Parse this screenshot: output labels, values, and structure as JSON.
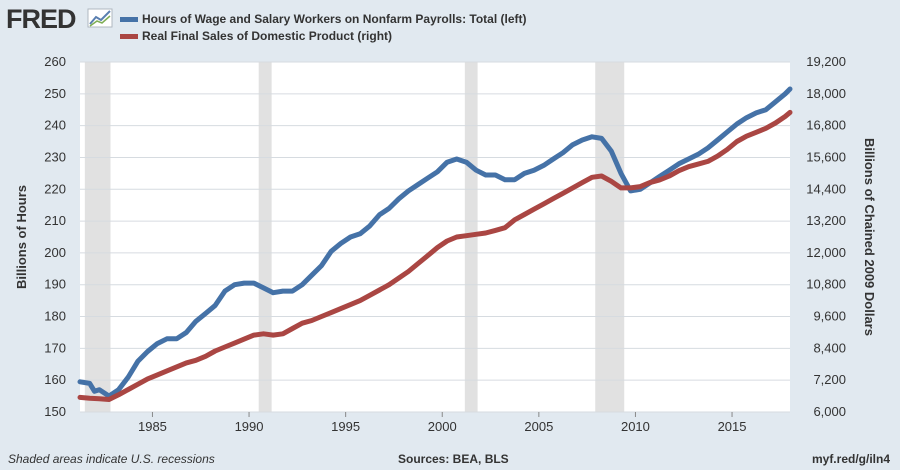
{
  "logo": {
    "text": "FRED",
    "icon": "fred-chart-icon"
  },
  "colors": {
    "series1": "#4572a7",
    "series2": "#aa4643",
    "recession": "#e1e1e1",
    "plot_bg": "#ffffff",
    "page_bg": "#e1e9f0"
  },
  "footer": {
    "note": "Shaded areas indicate U.S. recessions",
    "sources": "Sources: BEA, BLS",
    "url": "myf.red/g/iln4"
  },
  "chart_data": {
    "type": "line",
    "title": "",
    "legend_placement": "top-left",
    "left_axis": {
      "label": "Billions of Hours",
      "range": [
        150,
        260
      ],
      "ticks": [
        "150",
        "160",
        "170",
        "180",
        "190",
        "200",
        "210",
        "220",
        "230",
        "240",
        "250",
        "260"
      ]
    },
    "right_axis": {
      "label": "Billions of Chained 2009 Dollars",
      "range": [
        6000,
        19200
      ],
      "ticks": [
        "6,000",
        "7,200",
        "8,400",
        "9,600",
        "10,800",
        "12,000",
        "13,200",
        "14,400",
        "15,600",
        "16,800",
        "18,000",
        "19,200"
      ]
    },
    "x_axis": {
      "range": [
        1981.25,
        2018.0
      ],
      "ticks": [
        "1985",
        "1990",
        "1995",
        "2000",
        "2005",
        "2010",
        "2015"
      ]
    },
    "grid": "horizontal",
    "recessions": [
      [
        1981.5,
        1982.83
      ],
      [
        1990.5,
        1991.17
      ],
      [
        2001.17,
        2001.83
      ],
      [
        2007.92,
        2009.42
      ]
    ],
    "series": [
      {
        "name": "Hours of Wage and Salary Workers on Nonfarm Payrolls: Total (left)",
        "axis": "left",
        "points": [
          [
            1981.25,
            159.5
          ],
          [
            1981.75,
            159
          ],
          [
            1982.0,
            156.5
          ],
          [
            1982.25,
            157
          ],
          [
            1982.75,
            155
          ],
          [
            1983.25,
            157
          ],
          [
            1983.75,
            161
          ],
          [
            1984.25,
            166
          ],
          [
            1984.75,
            169
          ],
          [
            1985.25,
            171.5
          ],
          [
            1985.75,
            173
          ],
          [
            1986.25,
            173
          ],
          [
            1986.75,
            175
          ],
          [
            1987.25,
            178.5
          ],
          [
            1987.75,
            181
          ],
          [
            1988.25,
            183.5
          ],
          [
            1988.75,
            188
          ],
          [
            1989.25,
            190
          ],
          [
            1989.75,
            190.5
          ],
          [
            1990.25,
            190.5
          ],
          [
            1990.75,
            189
          ],
          [
            1991.25,
            187.5
          ],
          [
            1991.75,
            188
          ],
          [
            1992.25,
            188
          ],
          [
            1992.75,
            190
          ],
          [
            1993.25,
            193
          ],
          [
            1993.75,
            196
          ],
          [
            1994.25,
            200.5
          ],
          [
            1994.75,
            203
          ],
          [
            1995.25,
            205
          ],
          [
            1995.75,
            206
          ],
          [
            1996.25,
            208.5
          ],
          [
            1996.75,
            212
          ],
          [
            1997.25,
            214
          ],
          [
            1997.75,
            217
          ],
          [
            1998.25,
            219.5
          ],
          [
            1998.75,
            221.5
          ],
          [
            1999.25,
            223.5
          ],
          [
            1999.75,
            225.5
          ],
          [
            2000.25,
            228.5
          ],
          [
            2000.75,
            229.5
          ],
          [
            2001.25,
            228.5
          ],
          [
            2001.75,
            226
          ],
          [
            2002.25,
            224.5
          ],
          [
            2002.75,
            224.5
          ],
          [
            2003.25,
            223
          ],
          [
            2003.75,
            223
          ],
          [
            2004.25,
            225
          ],
          [
            2004.75,
            226
          ],
          [
            2005.25,
            227.5
          ],
          [
            2005.75,
            229.5
          ],
          [
            2006.25,
            231.5
          ],
          [
            2006.75,
            234
          ],
          [
            2007.25,
            235.5
          ],
          [
            2007.75,
            236.5
          ],
          [
            2008.25,
            236
          ],
          [
            2008.75,
            232
          ],
          [
            2009.25,
            225
          ],
          [
            2009.75,
            219.5
          ],
          [
            2010.25,
            220
          ],
          [
            2010.75,
            222
          ],
          [
            2011.25,
            224
          ],
          [
            2011.75,
            226
          ],
          [
            2012.25,
            228
          ],
          [
            2012.75,
            229.5
          ],
          [
            2013.25,
            231
          ],
          [
            2013.75,
            233
          ],
          [
            2014.25,
            235.5
          ],
          [
            2014.75,
            238
          ],
          [
            2015.25,
            240.5
          ],
          [
            2015.75,
            242.5
          ],
          [
            2016.25,
            244
          ],
          [
            2016.75,
            245
          ],
          [
            2017.25,
            247.5
          ],
          [
            2017.75,
            250
          ],
          [
            2018.0,
            251.5
          ]
        ]
      },
      {
        "name": "Real Final Sales of Domestic Product (right)",
        "axis": "right",
        "points": [
          [
            1981.25,
            6550
          ],
          [
            1981.75,
            6520
          ],
          [
            1982.25,
            6500
          ],
          [
            1982.75,
            6470
          ],
          [
            1983.25,
            6650
          ],
          [
            1983.75,
            6850
          ],
          [
            1984.25,
            7050
          ],
          [
            1984.75,
            7250
          ],
          [
            1985.25,
            7400
          ],
          [
            1985.75,
            7550
          ],
          [
            1986.25,
            7700
          ],
          [
            1986.75,
            7850
          ],
          [
            1987.25,
            7950
          ],
          [
            1987.75,
            8100
          ],
          [
            1988.25,
            8300
          ],
          [
            1988.75,
            8450
          ],
          [
            1989.25,
            8600
          ],
          [
            1989.75,
            8750
          ],
          [
            1990.25,
            8900
          ],
          [
            1990.75,
            8950
          ],
          [
            1991.25,
            8900
          ],
          [
            1991.75,
            8950
          ],
          [
            1992.25,
            9150
          ],
          [
            1992.75,
            9350
          ],
          [
            1993.25,
            9450
          ],
          [
            1993.75,
            9600
          ],
          [
            1994.25,
            9750
          ],
          [
            1994.75,
            9900
          ],
          [
            1995.25,
            10050
          ],
          [
            1995.75,
            10200
          ],
          [
            1996.25,
            10400
          ],
          [
            1996.75,
            10600
          ],
          [
            1997.25,
            10800
          ],
          [
            1997.75,
            11050
          ],
          [
            1998.25,
            11300
          ],
          [
            1998.75,
            11600
          ],
          [
            1999.25,
            11900
          ],
          [
            1999.75,
            12200
          ],
          [
            2000.25,
            12450
          ],
          [
            2000.75,
            12600
          ],
          [
            2001.25,
            12650
          ],
          [
            2001.75,
            12700
          ],
          [
            2002.25,
            12750
          ],
          [
            2002.75,
            12850
          ],
          [
            2003.25,
            12950
          ],
          [
            2003.75,
            13250
          ],
          [
            2004.25,
            13450
          ],
          [
            2004.75,
            13650
          ],
          [
            2005.25,
            13850
          ],
          [
            2005.75,
            14050
          ],
          [
            2006.25,
            14250
          ],
          [
            2006.75,
            14450
          ],
          [
            2007.25,
            14650
          ],
          [
            2007.75,
            14850
          ],
          [
            2008.25,
            14900
          ],
          [
            2008.75,
            14700
          ],
          [
            2009.25,
            14450
          ],
          [
            2009.75,
            14450
          ],
          [
            2010.25,
            14500
          ],
          [
            2010.75,
            14650
          ],
          [
            2011.25,
            14750
          ],
          [
            2011.75,
            14900
          ],
          [
            2012.25,
            15100
          ],
          [
            2012.75,
            15250
          ],
          [
            2013.25,
            15350
          ],
          [
            2013.75,
            15450
          ],
          [
            2014.25,
            15650
          ],
          [
            2014.75,
            15900
          ],
          [
            2015.25,
            16200
          ],
          [
            2015.75,
            16400
          ],
          [
            2016.25,
            16550
          ],
          [
            2016.75,
            16700
          ],
          [
            2017.25,
            16900
          ],
          [
            2017.75,
            17150
          ],
          [
            2018.0,
            17300
          ]
        ]
      }
    ]
  }
}
